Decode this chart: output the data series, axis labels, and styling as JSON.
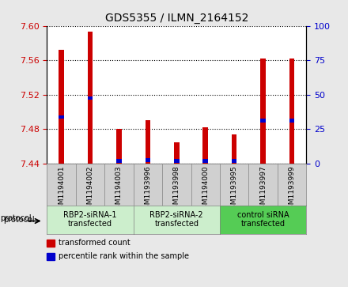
{
  "title": "GDS5355 / ILMN_2164152",
  "samples": [
    "GSM1194001",
    "GSM1194002",
    "GSM1194003",
    "GSM1193996",
    "GSM1193998",
    "GSM1194000",
    "GSM1193995",
    "GSM1193997",
    "GSM1193999"
  ],
  "red_values": [
    7.572,
    7.593,
    7.48,
    7.49,
    7.465,
    7.482,
    7.474,
    7.562,
    7.562
  ],
  "blue_values": [
    7.494,
    7.516,
    7.443,
    7.444,
    7.443,
    7.443,
    7.443,
    7.49,
    7.49
  ],
  "bar_bottom": 7.44,
  "ylim_left": [
    7.44,
    7.6
  ],
  "ylim_right": [
    0,
    100
  ],
  "yticks_left": [
    7.44,
    7.48,
    7.52,
    7.56,
    7.6
  ],
  "yticks_right": [
    0,
    25,
    50,
    75,
    100
  ],
  "groups": [
    {
      "label": "RBP2-siRNA-1\ntransfected",
      "indices": [
        0,
        1,
        2
      ],
      "color": "#cceecc"
    },
    {
      "label": "RBP2-siRNA-2\ntransfected",
      "indices": [
        3,
        4,
        5
      ],
      "color": "#cceecc"
    },
    {
      "label": "control siRNA\ntransfected",
      "indices": [
        6,
        7,
        8
      ],
      "color": "#55cc55"
    }
  ],
  "red_color": "#cc0000",
  "blue_color": "#0000cc",
  "bar_width": 0.18,
  "left_tick_color": "#cc0000",
  "right_tick_color": "#0000cc",
  "bg_color": "#e8e8e8",
  "plot_bg": "#ffffff",
  "grid_color": "#000000",
  "sample_box_color": "#d0d0d0",
  "legend_red_label": "transformed count",
  "legend_blue_label": "percentile rank within the sample",
  "protocol_label": "protocol"
}
